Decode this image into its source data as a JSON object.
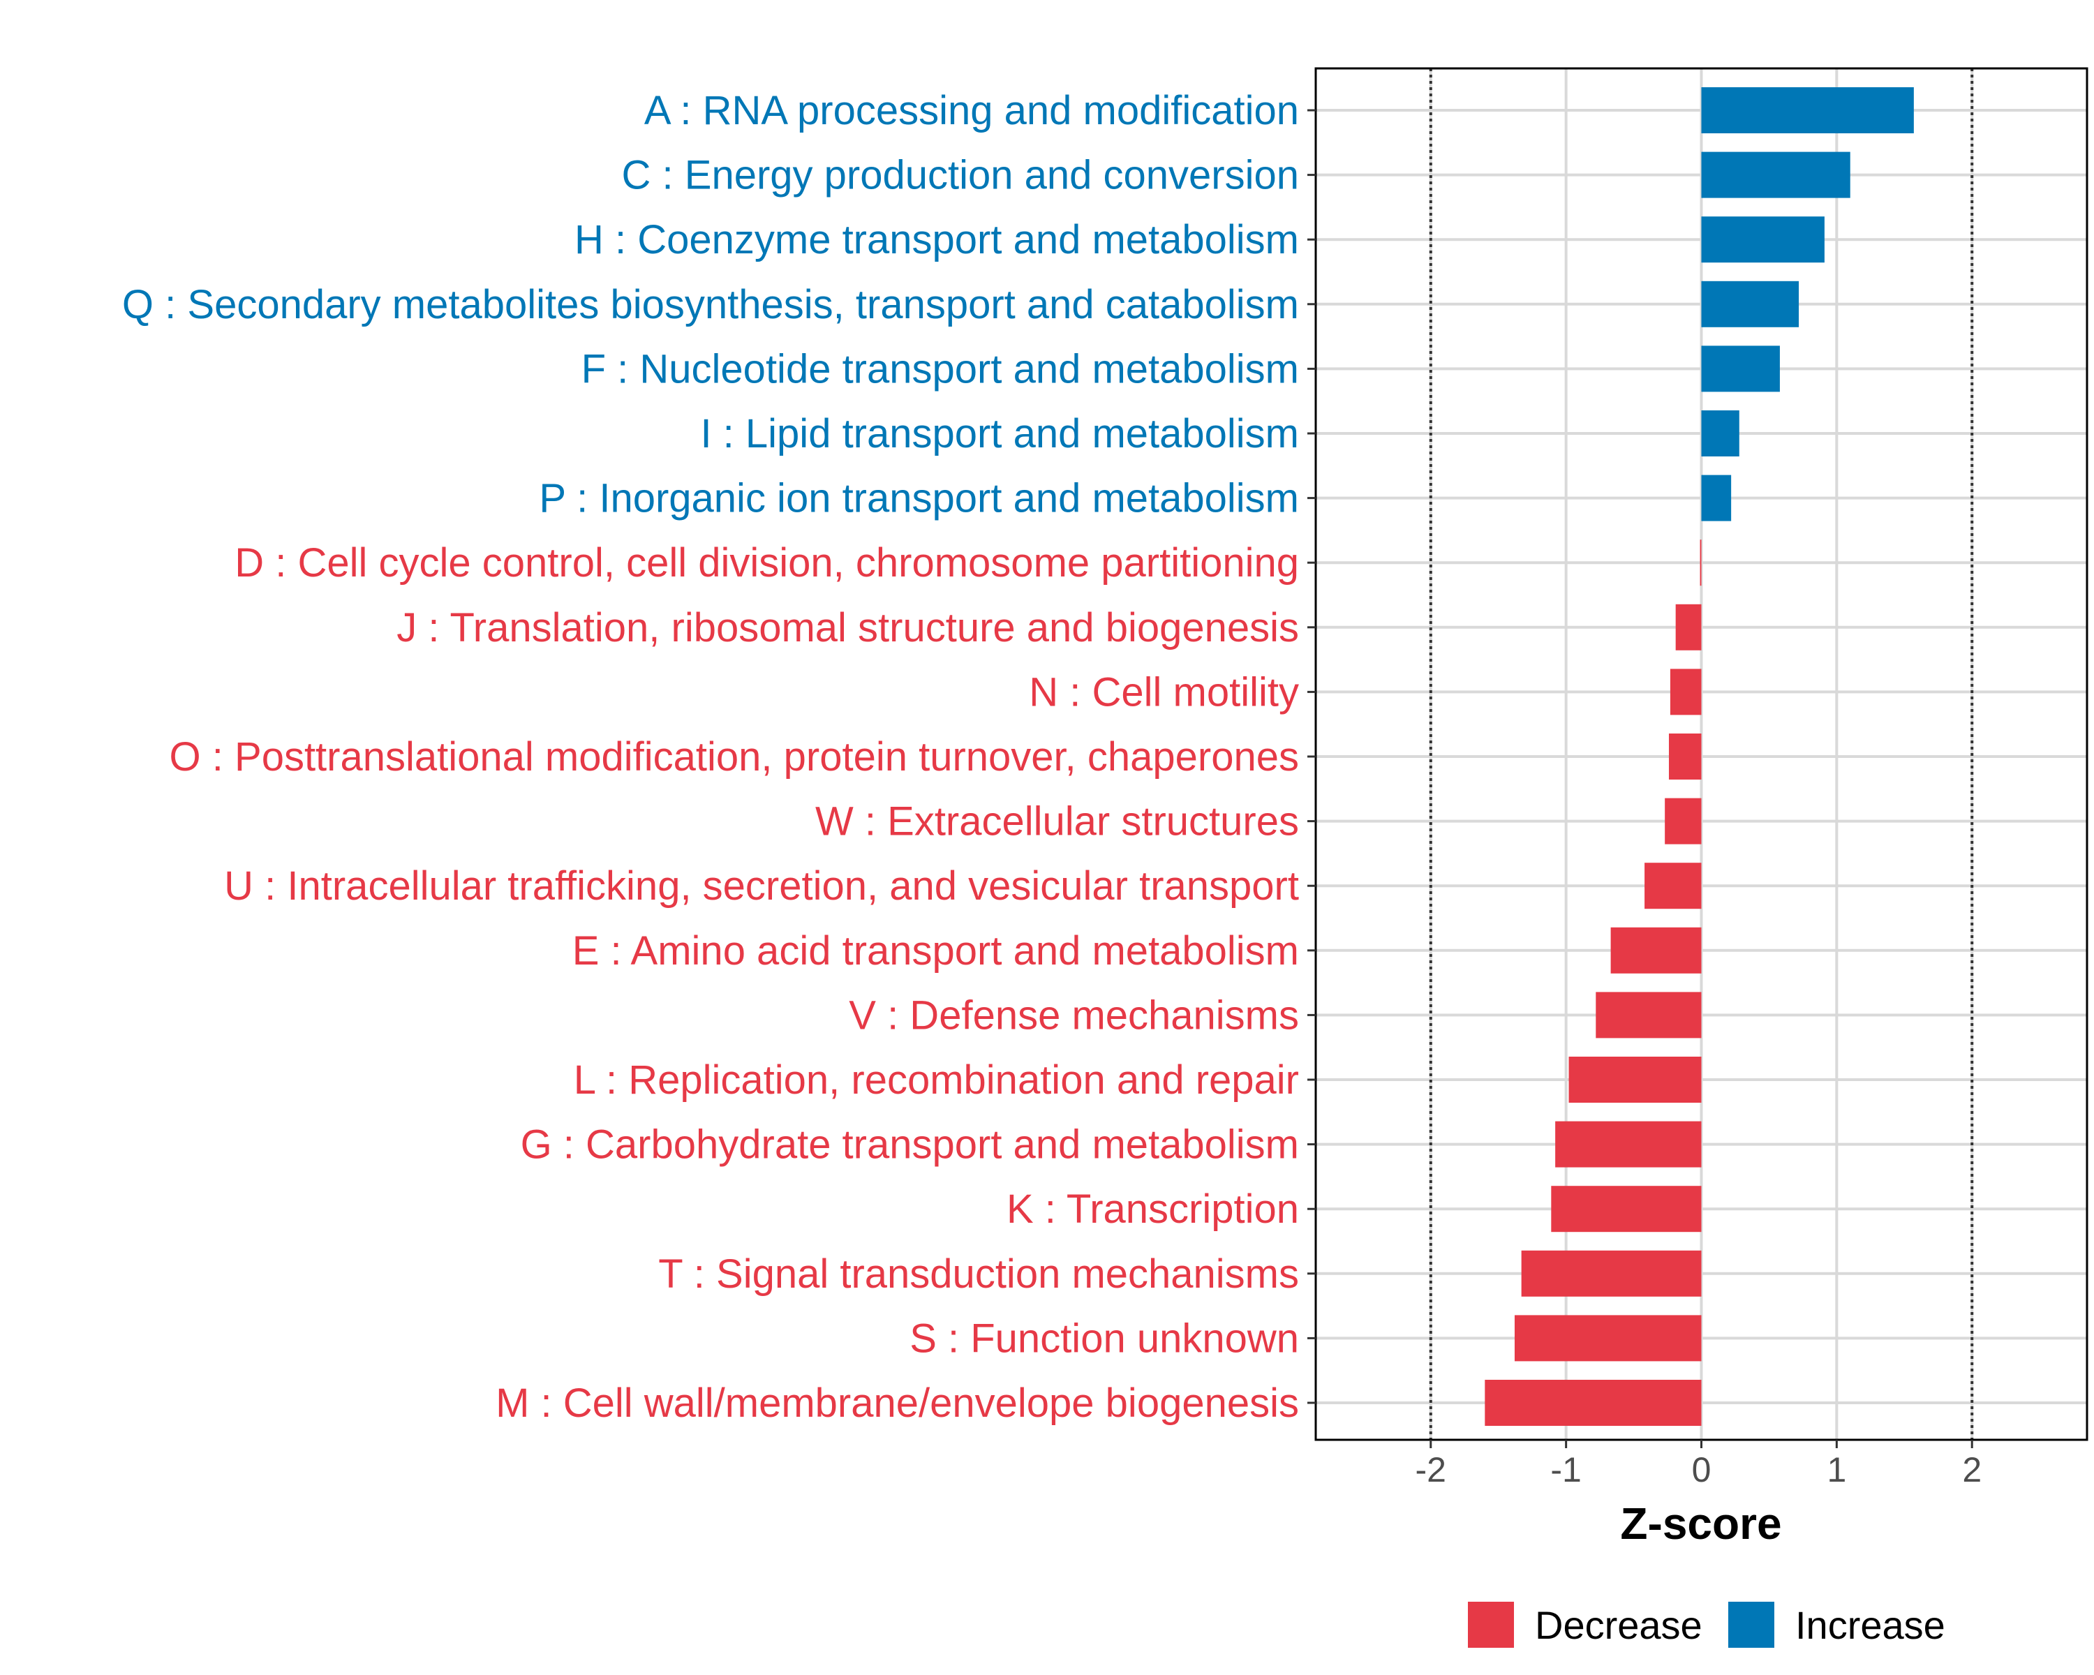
{
  "chart_data": {
    "type": "bar",
    "orientation": "horizontal",
    "xlabel": "Z-score",
    "xlim": [
      -2.85,
      2.85
    ],
    "x_ticks": [
      -2,
      -1,
      0,
      1,
      2
    ],
    "x_tick_labels": [
      "-2",
      "-1",
      "0",
      "1",
      "2"
    ],
    "reference_lines": [
      -2,
      2
    ],
    "grid": true,
    "legend_position": "bottom",
    "colors": {
      "Decrease": "#E63946",
      "Increase": "#0077B6"
    },
    "categories": [
      "A : RNA processing and modification",
      "C : Energy production and conversion",
      "H : Coenzyme transport and metabolism",
      "Q : Secondary metabolites biosynthesis, transport and catabolism",
      "F : Nucleotide transport and metabolism",
      "I : Lipid transport and metabolism",
      "P : Inorganic ion transport and metabolism",
      "D : Cell cycle control, cell division, chromosome partitioning",
      "J : Translation, ribosomal structure and biogenesis",
      "N : Cell motility",
      "O : Posttranslational modification, protein turnover, chaperones",
      "W : Extracellular structures",
      "U : Intracellular trafficking, secretion, and vesicular transport",
      "E : Amino acid transport and metabolism",
      "V : Defense mechanisms",
      "L : Replication, recombination and repair",
      "G : Carbohydrate transport and metabolism",
      "K : Transcription",
      "T : Signal transduction mechanisms",
      "S : Function unknown",
      "M : Cell wall/membrane/envelope biogenesis"
    ],
    "values": [
      1.57,
      1.1,
      0.91,
      0.72,
      0.58,
      0.28,
      0.22,
      -0.01,
      -0.19,
      -0.23,
      -0.24,
      -0.27,
      -0.42,
      -0.67,
      -0.78,
      -0.98,
      -1.08,
      -1.11,
      -1.33,
      -1.38,
      -1.6
    ],
    "groups": [
      "Increase",
      "Increase",
      "Increase",
      "Increase",
      "Increase",
      "Increase",
      "Increase",
      "Decrease",
      "Decrease",
      "Decrease",
      "Decrease",
      "Decrease",
      "Decrease",
      "Decrease",
      "Decrease",
      "Decrease",
      "Decrease",
      "Decrease",
      "Decrease",
      "Decrease",
      "Decrease"
    ],
    "legend": [
      "Decrease",
      "Increase"
    ]
  }
}
